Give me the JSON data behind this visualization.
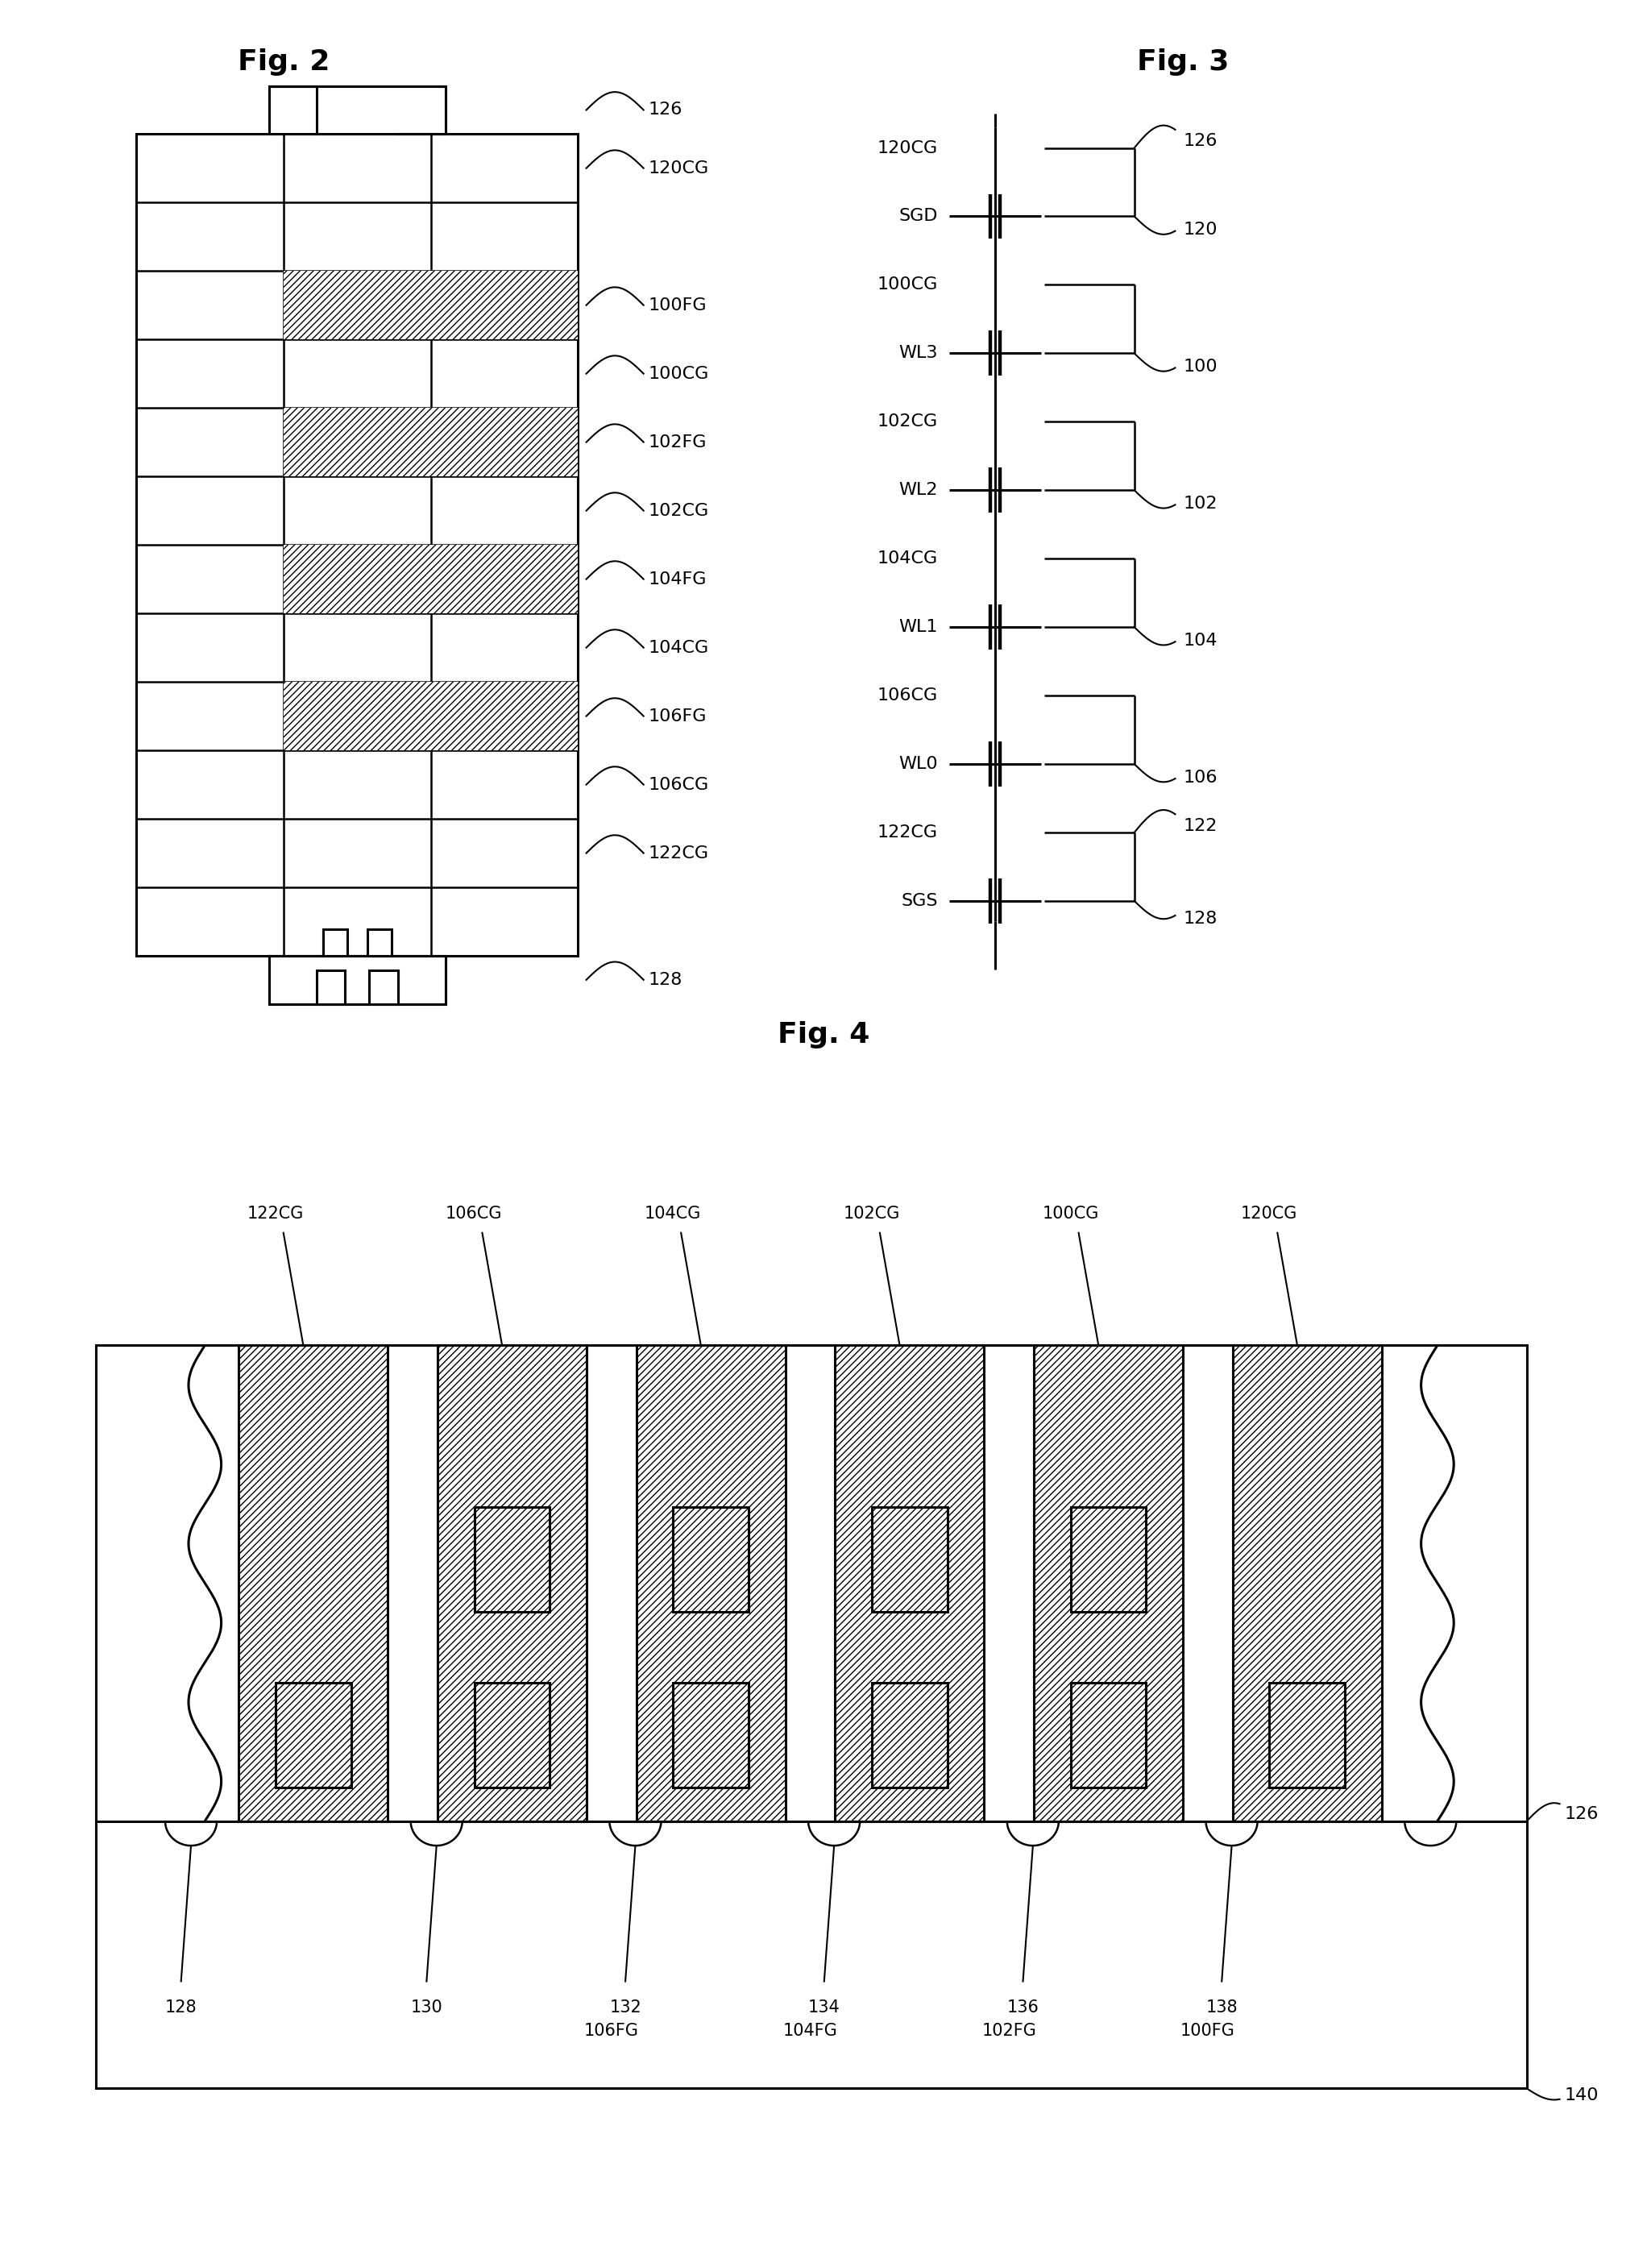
{
  "fig_title_fontsize": 26,
  "label_fontsize": 17,
  "bg_color": "#ffffff",
  "line_color": "#000000",
  "fig2_title": "Fig. 2",
  "fig3_title": "Fig. 3",
  "fig4_title": "Fig. 4",
  "fig2_labels": [
    "126",
    "120CG",
    "100FG",
    "100CG",
    "102FG",
    "102CG",
    "104FG",
    "104CG",
    "106FG",
    "106CG",
    "122CG",
    "128"
  ],
  "fig3_left_labels": [
    "120CG",
    "SGD",
    "100CG",
    "WL3",
    "102CG",
    "WL2",
    "104CG",
    "WL1",
    "106CG",
    "WL0",
    "122CG",
    "SGS"
  ],
  "fig3_right_labels": [
    "126",
    "120",
    "100",
    "102",
    "104",
    "106",
    "122",
    "128"
  ],
  "fig4_top_labels": [
    "122CG",
    "106CG",
    "104CG",
    "102CG",
    "100CG",
    "120CG"
  ],
  "fig4_bot_nums": [
    "128",
    "130",
    "132",
    "134",
    "136",
    "138"
  ],
  "fig4_fg_labels": [
    "106FG",
    "104FG",
    "102FG",
    "100FG"
  ],
  "fig4_side_labels": [
    "126",
    "140"
  ]
}
